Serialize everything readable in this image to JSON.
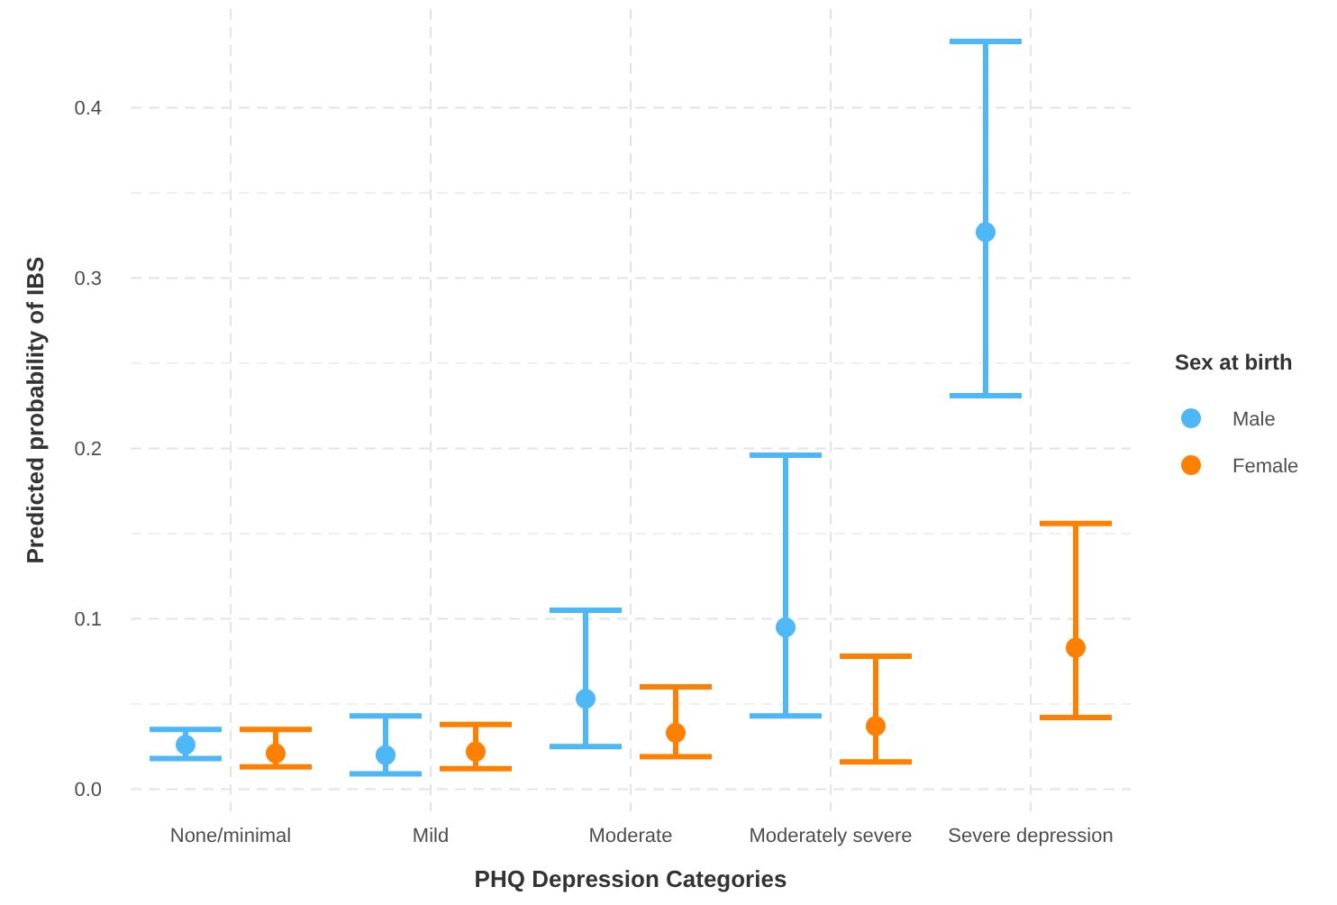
{
  "chart_data": {
    "type": "scatter",
    "xlabel": "PHQ Depression Categories",
    "ylabel": "Predicted probability of IBS",
    "legend_title": "Sex at birth",
    "categories": [
      "None/minimal",
      "Mild",
      "Moderate",
      "Moderately severe",
      "Severe depression"
    ],
    "series": [
      {
        "name": "Male",
        "color": "#4db8f5",
        "values": [
          0.026,
          0.02,
          0.053,
          0.095,
          0.327
        ],
        "errors": [
          [
            0.018,
            0.035
          ],
          [
            0.009,
            0.043
          ],
          [
            0.025,
            0.105
          ],
          [
            0.043,
            0.196
          ],
          [
            0.231,
            0.439
          ]
        ]
      },
      {
        "name": "Female",
        "color": "#ff7f00",
        "values": [
          0.021,
          0.022,
          0.033,
          0.037,
          0.083
        ],
        "errors": [
          [
            0.013,
            0.035
          ],
          [
            0.012,
            0.038
          ],
          [
            0.019,
            0.06
          ],
          [
            0.016,
            0.078
          ],
          [
            0.042,
            0.156
          ]
        ]
      }
    ],
    "ylim": [
      -0.013,
      0.458
    ],
    "yticks": [
      {
        "value": 0,
        "label": "0.0"
      },
      0.1,
      0.2,
      0.3,
      0.4
    ],
    "grid": true,
    "legend": "right",
    "marker": "circle"
  }
}
